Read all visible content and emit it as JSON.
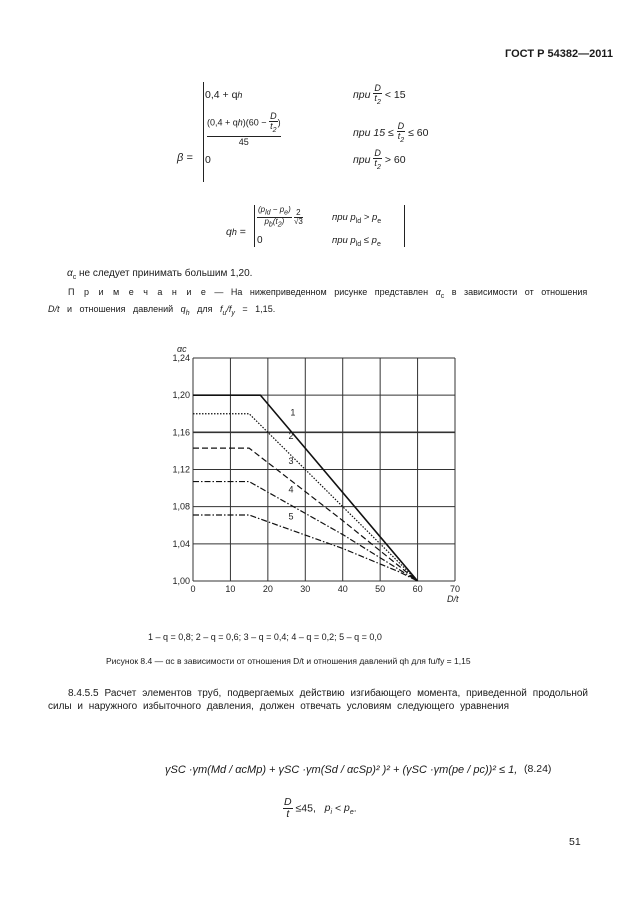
{
  "header": {
    "doc_id": "ГОСТ Р 54382—2011"
  },
  "formula_beta": {
    "lhs": "β =",
    "case1_expr": "0,4 + q",
    "case1_cond": "при",
    "case1_cmp": "< 15",
    "case2_num": "(0,4 + q",
    "case2_num2": ")(60 −",
    "case2_den": "45",
    "case2_cond": "при 15 ≤",
    "case2_cmp": "≤ 60",
    "case3_expr": "0",
    "case3_cond": "при",
    "case3_cmp": "> 60",
    "frac_num": "D",
    "frac_den": "t",
    "frac_den_sub": "2"
  },
  "formula_qh": {
    "lhs": "q",
    "lhs_sub": "h",
    "num": "(p",
    "num_mid": " − p",
    "den": "p",
    "den_rest": "(t",
    "two": "2",
    "sqrt3": "√3",
    "case1_cond": "при  p",
    "case1_cmp": " > p",
    "case2_expr": "0",
    "case2_cond": "при  p",
    "case2_cmp": " ≤ p"
  },
  "text": {
    "limit_note": "не следует принимать большим 1,20.",
    "note_label": "П р и м е ч а н и е",
    "note_body": " — На нижеприведенном рисунке представлен",
    "note_body2": "в зависимости от отношения",
    "note_line2a": "D/t",
    "note_line2b": " и отношения давлений ",
    "note_line2c": " для ",
    "note_line2d": " = 1,15.",
    "legend": "1 – q = 0,8; 2 – q = 0,6; 3 – q = 0,4; 4 – q = 0,2; 5 – q = 0,0",
    "figure_caption": "Рисунок 8.4 — αc в зависимости от отношения D/t и отношения давлений qh  для  fu/fy = 1,15",
    "section": "8.4.5.5 Расчет элементов труб, подвергаемых действию изгибающего момента, приведенной продольной силы и наружного избыточного давления, должен отвечать условиям следующего уравнения",
    "eq_main": "γSC ·γm(Md / αcMp) + γSC ·γm(Sd / αcSp)² )² + (γSC ·γm(pe / pc))² ≤ 1,",
    "eq_number": "(8.24)",
    "eq_cond": "D/t ≤45,   pi < pe.",
    "page_number": "51"
  },
  "chart_data": {
    "type": "line",
    "title": "",
    "xlabel": "D/t",
    "ylabel": "αc",
    "xlim": [
      0,
      70
    ],
    "ylim": [
      1.0,
      1.24
    ],
    "xticks": [
      "0",
      "10",
      "20",
      "30",
      "40",
      "50",
      "60",
      "70"
    ],
    "yticks": [
      "1,00",
      "1,04",
      "1,08",
      "1,12",
      "1,16",
      "1,20",
      "1,24"
    ],
    "grid": true,
    "series": [
      {
        "name": "1",
        "style": "solid",
        "points": [
          [
            0,
            1.2
          ],
          [
            18,
            1.2
          ],
          [
            60,
            1.0
          ]
        ]
      },
      {
        "name": "2",
        "style": "dotted",
        "points": [
          [
            0,
            1.18
          ],
          [
            15,
            1.18
          ],
          [
            60,
            1.0
          ]
        ]
      },
      {
        "name": "3",
        "style": "dashed",
        "points": [
          [
            0,
            1.143
          ],
          [
            15,
            1.143
          ],
          [
            40,
            1.065
          ],
          [
            60,
            1.0
          ]
        ]
      },
      {
        "name": "4",
        "style": "dash-dot",
        "points": [
          [
            0,
            1.107
          ],
          [
            15,
            1.107
          ],
          [
            40,
            1.05
          ],
          [
            60,
            1.0
          ]
        ]
      },
      {
        "name": "5",
        "style": "dash-dot",
        "points": [
          [
            0,
            1.071
          ],
          [
            15,
            1.071
          ],
          [
            40,
            1.035
          ],
          [
            55,
            1.01
          ],
          [
            60,
            1.0
          ]
        ]
      }
    ],
    "highlight_line_y": 1.16
  }
}
